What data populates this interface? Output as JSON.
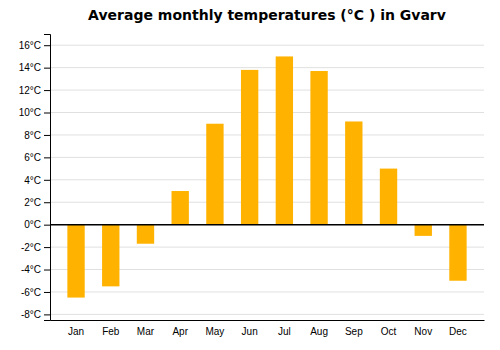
{
  "chart_data": {
    "type": "bar",
    "title": "Average monthly temperatures (°C ) in Gvarv",
    "categories": [
      "Jan",
      "Feb",
      "Mar",
      "Apr",
      "May",
      "Jun",
      "Jul",
      "Aug",
      "Sep",
      "Oct",
      "Nov",
      "Dec"
    ],
    "values": [
      -6.5,
      -5.5,
      -1.7,
      3.0,
      9.0,
      13.8,
      15.0,
      13.7,
      9.2,
      5.0,
      -1.0,
      -5.0
    ],
    "color": "#FFB300",
    "ylim": [
      -8.5,
      17
    ],
    "yticks": [
      {
        "value": -8,
        "label": "-8°C"
      },
      {
        "value": -6,
        "label": "-6°C"
      },
      {
        "value": -4,
        "label": "-4°C"
      },
      {
        "value": -2,
        "label": "-2°C"
      },
      {
        "value": 0,
        "label": "0°C"
      },
      {
        "value": 2,
        "label": "2°C"
      },
      {
        "value": 4,
        "label": "4°C"
      },
      {
        "value": 6,
        "label": "6°C"
      },
      {
        "value": 8,
        "label": "8°C"
      },
      {
        "value": 10,
        "label": "10°C"
      },
      {
        "value": 12,
        "label": "12°C"
      },
      {
        "value": 14,
        "label": "14°C"
      },
      {
        "value": 16,
        "label": "16°C"
      }
    ],
    "grid": true
  }
}
